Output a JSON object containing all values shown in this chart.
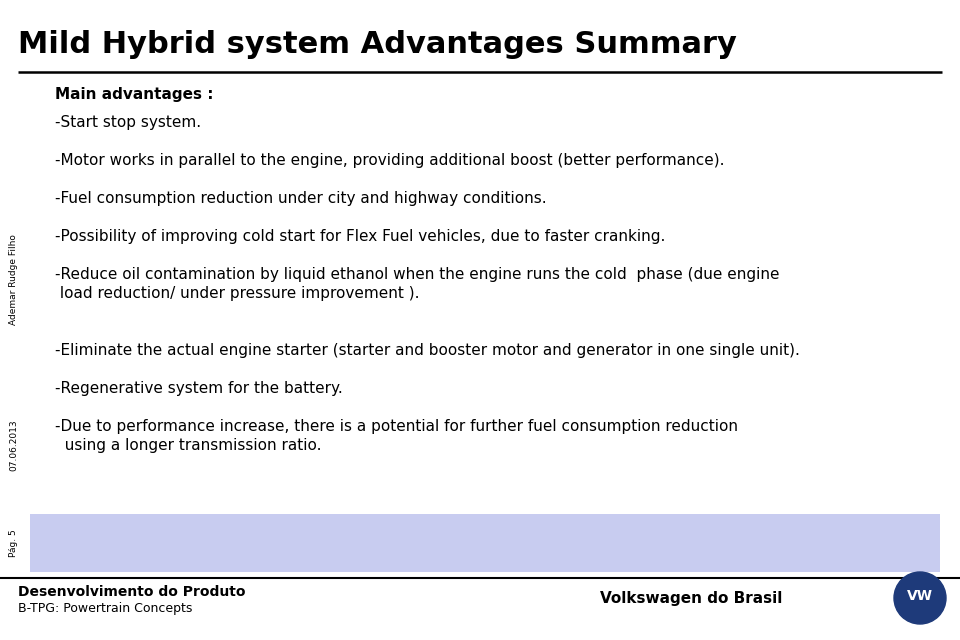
{
  "title": "Mild Hybrid system Advantages Summary",
  "title_fontsize": 22,
  "title_fontweight": "bold",
  "bg_color": "#ffffff",
  "section_header": "Main advantages :",
  "bullet_lines": [
    "-Start stop system.",
    "-Motor works in parallel to the engine, providing additional boost (better performance).",
    "-Fuel consumption reduction under city and highway conditions.",
    "-Possibility of improving cold start for Flex Fuel vehicles, due to faster cranking.",
    "-Reduce oil contamination by liquid ethanol when the engine runs the cold  phase (due engine\n load reduction/ under pressure improvement ).",
    "-Eliminate the actual engine starter (starter and booster motor and generator in one single unit).",
    "-Regenerative system for the battery.",
    "-Due to performance increase, there is a potential for further fuel consumption reduction\n  using a longer transmission ratio."
  ],
  "highlight_index": -1,
  "side_text_top": "Ademar Rudge Filho",
  "side_text_bottom": "07.06.2013",
  "page_label": "Pág. 5",
  "footer_left_bold": "Desenvolvimento do Produto",
  "footer_left_small": "B-TPG: Powertrain Concepts",
  "footer_right": "Volkswagen do Brasil",
  "light_blue_box_color": "#c8ccf0",
  "footer_line_color": "#000000",
  "header_line_color": "#000000",
  "text_color": "#000000",
  "bullet_fontsize": 11,
  "header_fontsize": 11
}
